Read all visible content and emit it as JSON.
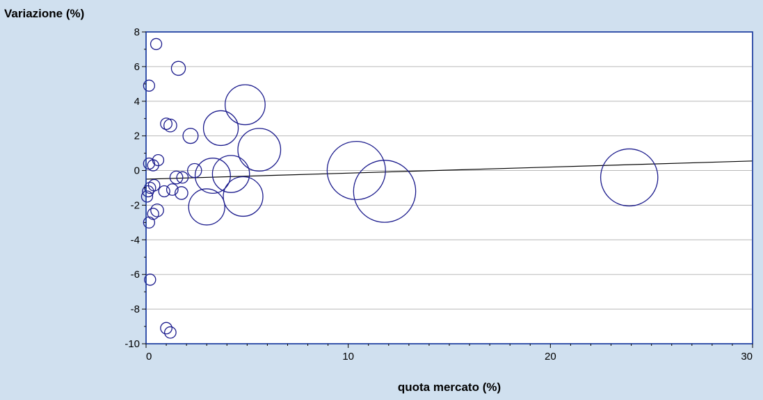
{
  "chart_data": {
    "type": "scatter",
    "variant": "bubble",
    "ylabel": "Variazione (%)",
    "xlabel": "quota mercato (%)",
    "xlim": [
      0,
      30
    ],
    "ylim": [
      -10,
      8
    ],
    "x_ticks": [
      0,
      10,
      20,
      30
    ],
    "y_ticks": [
      8,
      6,
      4,
      2,
      0,
      -2,
      -4,
      -6,
      -8,
      -10
    ],
    "grid": "horizontal",
    "legend": "none",
    "colors": {
      "bubble": "#1a1a8c",
      "trend": "#000000",
      "frame": "#1f3fa0",
      "background": "#d0e0ef",
      "plot_area": "#ffffff",
      "grid": "#b8b8b8"
    },
    "trend_line": {
      "x": [
        0,
        30
      ],
      "y": [
        -0.5,
        0.55
      ]
    },
    "series": [
      {
        "points": [
          {
            "x": 0.5,
            "y": 7.3,
            "size": 0.3
          },
          {
            "x": 1.6,
            "y": 5.9,
            "size": 0.6
          },
          {
            "x": 0.15,
            "y": 4.9,
            "size": 0.15
          },
          {
            "x": 4.9,
            "y": 3.8,
            "size": 4.9
          },
          {
            "x": 1.0,
            "y": 2.7,
            "size": 0.4
          },
          {
            "x": 1.2,
            "y": 2.6,
            "size": 0.5
          },
          {
            "x": 3.7,
            "y": 2.45,
            "size": 3.7
          },
          {
            "x": 2.2,
            "y": 2.0,
            "size": 0.7
          },
          {
            "x": 5.6,
            "y": 1.2,
            "size": 5.6
          },
          {
            "x": 0.15,
            "y": 0.4,
            "size": 0.2
          },
          {
            "x": 0.6,
            "y": 0.6,
            "size": 0.3
          },
          {
            "x": 0.35,
            "y": 0.3,
            "size": 0.2
          },
          {
            "x": 10.4,
            "y": 0.0,
            "size": 10.4
          },
          {
            "x": 2.4,
            "y": 0.0,
            "size": 0.6
          },
          {
            "x": 3.3,
            "y": -0.3,
            "size": 3.8
          },
          {
            "x": 4.2,
            "y": -0.2,
            "size": 4.2
          },
          {
            "x": 1.5,
            "y": -0.4,
            "size": 0.5
          },
          {
            "x": 1.8,
            "y": -0.4,
            "size": 0.4
          },
          {
            "x": 0.4,
            "y": -0.85,
            "size": 0.4
          },
          {
            "x": 0.2,
            "y": -1.0,
            "size": 0.3
          },
          {
            "x": 0.1,
            "y": -1.2,
            "size": 0.2
          },
          {
            "x": 0.9,
            "y": -1.2,
            "size": 0.3
          },
          {
            "x": 1.3,
            "y": -1.1,
            "size": 0.4
          },
          {
            "x": 1.75,
            "y": -1.3,
            "size": 0.5
          },
          {
            "x": 0.05,
            "y": -1.5,
            "size": 0.15
          },
          {
            "x": 11.8,
            "y": -1.2,
            "size": 11.8
          },
          {
            "x": 4.8,
            "y": -1.5,
            "size": 4.8
          },
          {
            "x": 3.0,
            "y": -2.1,
            "size": 4.0
          },
          {
            "x": 0.55,
            "y": -2.3,
            "size": 0.5
          },
          {
            "x": 0.35,
            "y": -2.5,
            "size": 0.3
          },
          {
            "x": 0.15,
            "y": -3.0,
            "size": 0.3
          },
          {
            "x": 0.2,
            "y": -6.3,
            "size": 0.3
          },
          {
            "x": 1.0,
            "y": -9.1,
            "size": 0.4
          },
          {
            "x": 1.2,
            "y": -9.35,
            "size": 0.4
          },
          {
            "x": 23.9,
            "y": -0.4,
            "size": 10.0
          }
        ]
      }
    ]
  }
}
